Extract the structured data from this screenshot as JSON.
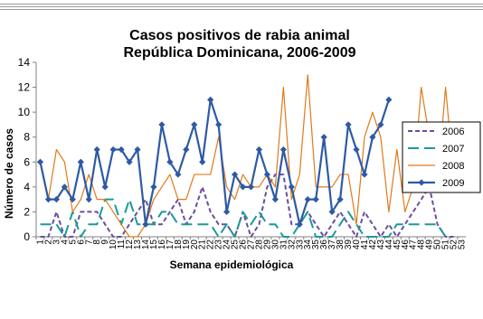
{
  "chart_data": {
    "type": "line",
    "title_line1": "Casos positivos de rabia animal",
    "title_line2": "República Dominicana, 2006-2009",
    "xlabel": "Semana epidemiológica",
    "ylabel": "Número de casos",
    "ylim": [
      0,
      14
    ],
    "yticks": [
      0,
      2,
      4,
      6,
      8,
      10,
      12,
      14
    ],
    "x": [
      1,
      2,
      3,
      4,
      5,
      6,
      7,
      8,
      9,
      10,
      11,
      12,
      13,
      14,
      15,
      16,
      17,
      18,
      19,
      20,
      21,
      22,
      23,
      24,
      25,
      26,
      27,
      28,
      29,
      30,
      31,
      32,
      33,
      34,
      35,
      36,
      37,
      38,
      39,
      40,
      41,
      42,
      43,
      44,
      45,
      46,
      47,
      48,
      49,
      50,
      51,
      52,
      53
    ],
    "legend_position": "right",
    "grid": false,
    "series": [
      {
        "name": "2006",
        "color": "#6a4ea0",
        "values": [
          0,
          0,
          2,
          0,
          0,
          2,
          2,
          2,
          1,
          0,
          0,
          1,
          2,
          3,
          1,
          1,
          2,
          3,
          1,
          2,
          4,
          2,
          1,
          1,
          0,
          2,
          0,
          1,
          4,
          5,
          5,
          1,
          1,
          2,
          1,
          0,
          1,
          2,
          1,
          0,
          2,
          1,
          0,
          1,
          0,
          1,
          2,
          3,
          4,
          1,
          0,
          0,
          null
        ]
      },
      {
        "name": "2007",
        "color": "#1a9a9a",
        "values": [
          1,
          1,
          1,
          0,
          2,
          0,
          1,
          1,
          3,
          3,
          1,
          3,
          1,
          1,
          1,
          2,
          2,
          1,
          1,
          1,
          1,
          1,
          0,
          1,
          0,
          2,
          1,
          2,
          1,
          1,
          0,
          0,
          1,
          2,
          0,
          0,
          0,
          1,
          2,
          1,
          0,
          0,
          0,
          0,
          1,
          1,
          1,
          1,
          1,
          1,
          0,
          null,
          null
        ]
      },
      {
        "name": "2008",
        "color": "#e07a1a",
        "values": [
          6,
          3,
          7,
          6,
          2,
          3,
          5,
          3,
          3,
          2,
          1,
          0,
          0,
          1,
          3,
          4,
          5,
          3,
          3,
          5,
          5,
          5,
          8,
          4,
          3,
          5,
          4,
          4,
          5,
          4,
          12,
          3,
          5,
          13,
          4,
          4,
          4,
          5,
          5,
          1,
          8,
          10,
          8,
          2,
          7,
          2,
          4,
          12,
          8,
          4,
          12,
          5,
          null
        ]
      },
      {
        "name": "2009",
        "color": "#2e5aa4",
        "values": [
          6,
          3,
          3,
          4,
          3,
          6,
          3,
          7,
          4,
          7,
          7,
          6,
          7,
          1,
          4,
          9,
          6,
          5,
          7,
          9,
          6,
          11,
          9,
          2,
          5,
          4,
          4,
          7,
          5,
          3,
          7,
          4,
          1,
          3,
          3,
          8,
          2,
          3,
          9,
          7,
          5,
          8,
          9,
          11,
          null,
          null,
          null,
          null,
          null,
          null,
          null,
          null,
          null
        ]
      }
    ]
  }
}
